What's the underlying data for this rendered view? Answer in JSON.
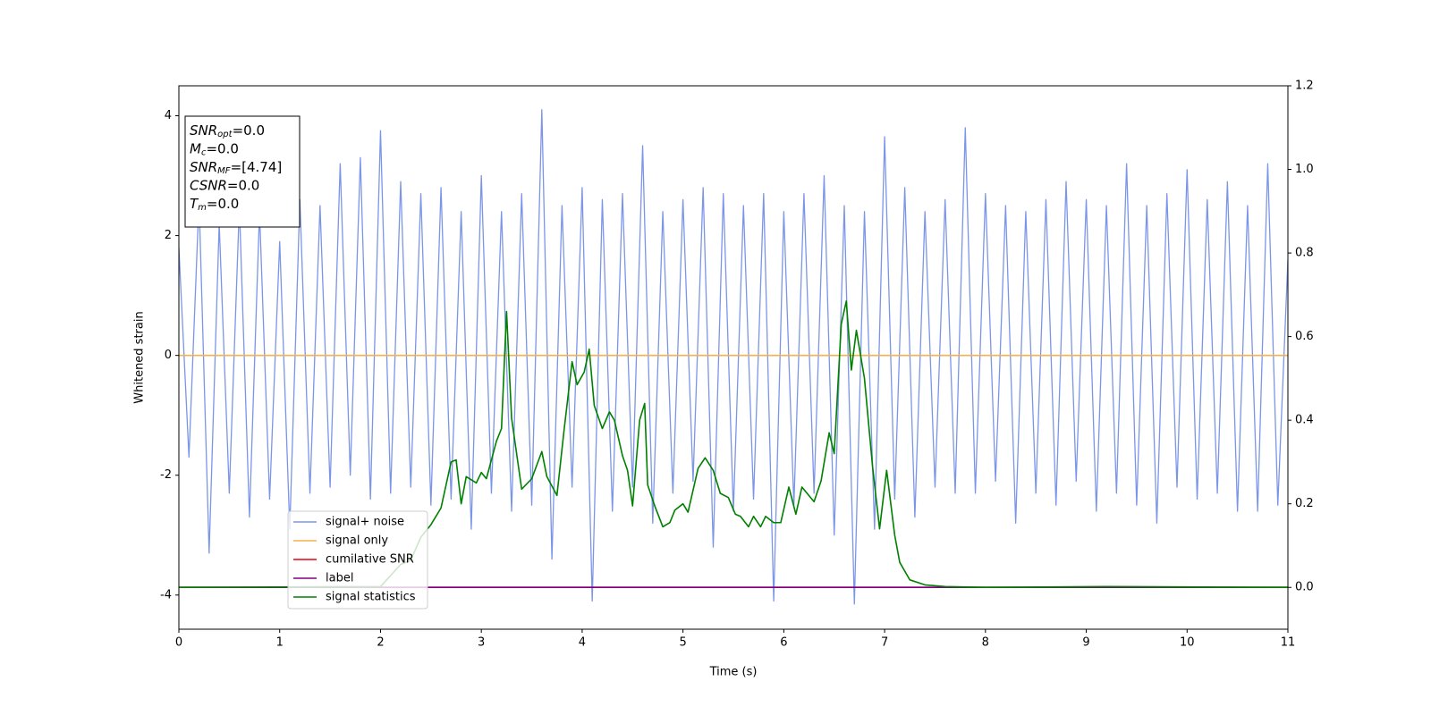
{
  "chart_data": {
    "type": "line",
    "xlabel": "Time (s)",
    "ylabel": "Whitened strain",
    "xlim": [
      0,
      11
    ],
    "xticks": [
      0,
      1,
      2,
      3,
      4,
      5,
      6,
      7,
      8,
      9,
      10,
      11
    ],
    "ylim": [
      -4.57,
      4.5
    ],
    "yticks": [
      -4,
      -2,
      0,
      2,
      4
    ],
    "y2lim": [
      -0.1,
      1.2
    ],
    "y2ticks": [
      {
        "value": 0,
        "label": "0.0"
      },
      0.2,
      0.4,
      0.6,
      0.8,
      {
        "value": 1,
        "label": "1.0"
      },
      1.2
    ],
    "grid": false,
    "legend": "lower left",
    "annotations": [
      {
        "symbol": "SNR",
        "subscript": "opt",
        "text": "=0.0"
      },
      {
        "symbol": "M",
        "subscript": "c",
        "text": "=0.0"
      },
      {
        "symbol": "SNR",
        "subscript": "MF",
        "text": "=[4.74]"
      },
      {
        "symbol": "CSNR",
        "text": "=0.0"
      },
      {
        "symbol": "T",
        "subscript": "m",
        "text": "=0.0"
      }
    ],
    "series": [
      {
        "name": "signal+ noise",
        "color": "#7b95e8",
        "x": [
          0,
          0.1,
          0.2,
          0.3,
          0.4,
          0.5,
          0.6,
          0.7,
          0.8,
          0.9,
          1,
          1.1,
          1.2,
          1.3,
          1.4,
          1.5,
          1.6,
          1.7,
          1.8,
          1.9,
          2,
          2.1,
          2.2,
          2.3,
          2.4,
          2.5,
          2.6,
          2.7,
          2.8,
          2.9,
          3,
          3.1,
          3.2,
          3.3,
          3.4,
          3.5,
          3.6,
          3.7,
          3.8,
          3.9,
          4,
          4.1,
          4.2,
          4.3,
          4.4,
          4.5,
          4.6,
          4.7,
          4.8,
          4.9,
          5,
          5.1,
          5.2,
          5.3,
          5.4,
          5.5,
          5.6,
          5.7,
          5.8,
          5.9,
          6,
          6.1,
          6.2,
          6.3,
          6.4,
          6.5,
          6.6,
          6.7,
          6.8,
          6.9,
          7,
          7.1,
          7.2,
          7.3,
          7.4,
          7.5,
          7.6,
          7.7,
          7.8,
          7.9,
          8,
          8.1,
          8.2,
          8.3,
          8.4,
          8.5,
          8.6,
          8.7,
          8.8,
          8.9,
          9,
          9.1,
          9.2,
          9.3,
          9.4,
          9.5,
          9.6,
          9.7,
          9.8,
          9.9,
          10,
          10.1,
          10.2,
          10.3,
          10.4,
          10.5,
          10.6,
          10.7,
          10.8,
          10.9,
          11
        ],
        "values": [
          1.8,
          -1.7,
          2.6,
          -3.3,
          2.2,
          -2.3,
          2.5,
          -2.7,
          2.4,
          -2.4,
          1.9,
          -2.9,
          2.6,
          -2.3,
          2.5,
          -2.2,
          3.2,
          -2.0,
          3.3,
          -2.4,
          3.75,
          -2.3,
          2.9,
          -2.2,
          2.7,
          -2.5,
          2.8,
          -2.4,
          2.4,
          -2.9,
          3.0,
          -2.3,
          2.4,
          -2.6,
          2.7,
          -2.5,
          4.1,
          -3.4,
          2.5,
          -2.2,
          2.8,
          -4.1,
          2.6,
          -2.6,
          2.7,
          -2.2,
          3.5,
          -2.8,
          2.4,
          -2.3,
          2.6,
          -2.1,
          2.8,
          -3.2,
          2.7,
          -2.6,
          2.5,
          -2.4,
          2.7,
          -4.1,
          2.4,
          -2.5,
          2.7,
          -2.3,
          3.0,
          -3.0,
          2.5,
          -4.15,
          2.4,
          -2.9,
          3.65,
          -2.4,
          2.8,
          -2.7,
          2.4,
          -2.2,
          2.6,
          -2.3,
          3.8,
          -2.3,
          2.7,
          -2.1,
          2.5,
          -2.8,
          2.4,
          -2.3,
          2.6,
          -2.5,
          2.9,
          -2.1,
          2.6,
          -2.6,
          2.5,
          -2.3,
          3.2,
          -2.5,
          2.5,
          -2.8,
          2.7,
          -2.2,
          3.1,
          -2.4,
          2.6,
          -2.3,
          2.9,
          -2.6,
          2.5,
          -2.6,
          3.2,
          -2.5,
          1.6
        ]
      },
      {
        "name": "signal only",
        "color": "#f5b04f",
        "x": [
          0,
          11
        ],
        "values": [
          0,
          0
        ]
      },
      {
        "name": "cumilative SNR",
        "color": "#e8000b",
        "axis": "y2",
        "x": [
          0,
          11
        ],
        "values": [
          0,
          0
        ]
      },
      {
        "name": "label",
        "color": "#800080",
        "axis": "y2",
        "x": [
          0,
          11
        ],
        "values": [
          0,
          0
        ]
      },
      {
        "name": "signal statistics",
        "color": "#008000",
        "axis": "y2",
        "x": [
          0,
          2.0,
          2.2,
          2.3,
          2.4,
          2.5,
          2.6,
          2.7,
          2.75,
          2.8,
          2.85,
          2.95,
          3.0,
          3.05,
          3.15,
          3.2,
          3.25,
          3.3,
          3.4,
          3.5,
          3.6,
          3.65,
          3.75,
          3.82,
          3.9,
          3.95,
          4.02,
          4.07,
          4.12,
          4.2,
          4.27,
          4.32,
          4.4,
          4.45,
          4.5,
          4.57,
          4.62,
          4.65,
          4.72,
          4.8,
          4.87,
          4.92,
          5.0,
          5.05,
          5.15,
          5.22,
          5.3,
          5.37,
          5.45,
          5.52,
          5.57,
          5.65,
          5.7,
          5.77,
          5.82,
          5.9,
          5.97,
          6.05,
          6.12,
          6.18,
          6.3,
          6.37,
          6.45,
          6.5,
          6.57,
          6.62,
          6.67,
          6.72,
          6.8,
          6.88,
          6.95,
          7.02,
          7.1,
          7.15,
          7.25,
          7.4,
          7.6,
          8.0,
          9.2,
          11
        ],
        "values": [
          0,
          0.002,
          0.055,
          0.065,
          0.12,
          0.15,
          0.19,
          0.3,
          0.305,
          0.2,
          0.265,
          0.25,
          0.275,
          0.26,
          0.35,
          0.38,
          0.66,
          0.405,
          0.235,
          0.26,
          0.325,
          0.265,
          0.22,
          0.375,
          0.54,
          0.485,
          0.515,
          0.57,
          0.435,
          0.38,
          0.42,
          0.4,
          0.315,
          0.28,
          0.195,
          0.4,
          0.44,
          0.245,
          0.195,
          0.145,
          0.155,
          0.185,
          0.2,
          0.18,
          0.285,
          0.31,
          0.28,
          0.225,
          0.215,
          0.175,
          0.17,
          0.145,
          0.17,
          0.145,
          0.17,
          0.155,
          0.155,
          0.24,
          0.175,
          0.24,
          0.205,
          0.255,
          0.37,
          0.32,
          0.63,
          0.685,
          0.52,
          0.615,
          0.5,
          0.29,
          0.14,
          0.28,
          0.125,
          0.06,
          0.018,
          0.006,
          0.002,
          0,
          0.002,
          0
        ]
      }
    ]
  }
}
